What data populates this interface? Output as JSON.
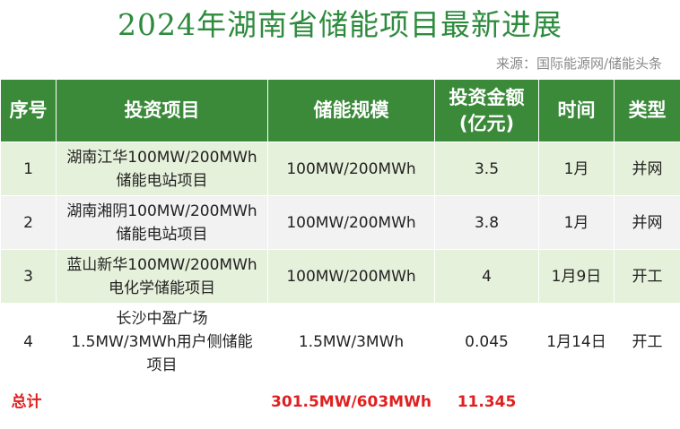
{
  "header": {
    "title": "2024年湖南省储能项目最新进展",
    "source": "来源：国际能源网/储能头条"
  },
  "table": {
    "columns": [
      "序号",
      "投资项目",
      "储能规模",
      "投资金额\n(亿元)",
      "时间",
      "类型"
    ],
    "rows": [
      {
        "no": "1",
        "project": "湖南江华100MW/200MWh\n储能电站项目",
        "scale": "100MW/200MWh",
        "amount": "3.5",
        "time": "1月",
        "type": "并网"
      },
      {
        "no": "2",
        "project": "湖南湘阴100MW/200MWh\n储能电站项目",
        "scale": "100MW/200MWh",
        "amount": "3.8",
        "time": "1月",
        "type": "并网"
      },
      {
        "no": "3",
        "project": "蓝山新华100MW/200MWh\n电化学储能项目",
        "scale": "100MW/200MWh",
        "amount": "4",
        "time": "1月9日",
        "type": "开工"
      },
      {
        "no": "4",
        "project": "长沙中盈广场\n1.5MW/3MWh用户侧储能\n项目",
        "scale": "1.5MW/3MWh",
        "amount": "0.045",
        "time": "1月14日",
        "type": "开工"
      }
    ],
    "total": {
      "label": "总计",
      "scale": "301.5MW/603MWh",
      "amount": "11.345"
    }
  },
  "colors": {
    "title": "#2e8b3e",
    "header_bg": "#3a8a3a",
    "row_green": "#e6f1db",
    "row_gray": "#f2f2f2",
    "total_text": "#e02020"
  }
}
